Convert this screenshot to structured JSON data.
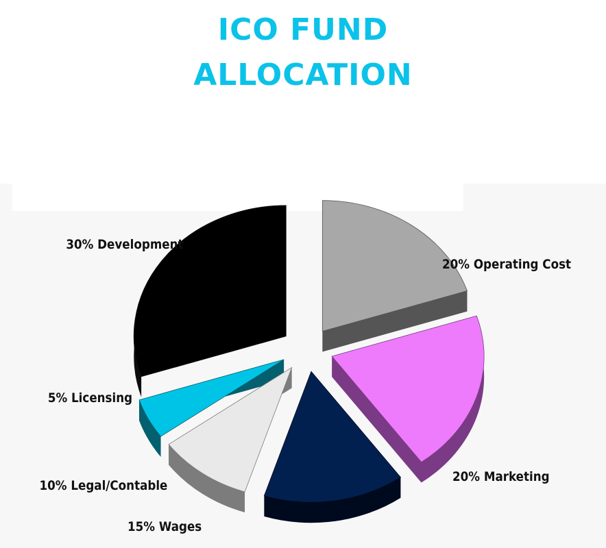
{
  "title": {
    "line1": "ICO FUND",
    "line2": "ALLOCATION",
    "color": "#0bc2e8"
  },
  "chart_data": {
    "type": "pie",
    "title": "ICO FUND ALLOCATION",
    "style": "3d-exploded",
    "label_format": "percent and category",
    "slices": [
      {
        "label": "20% Operating Cost",
        "category": "Operating Cost",
        "value": 20,
        "color": "#a8a8a8",
        "side_color": "#555555"
      },
      {
        "label": "20% Marketing",
        "category": "Marketing",
        "value": 20,
        "color": "#ee7bfc",
        "side_color": "#7a3a85"
      },
      {
        "label": "15% Wages",
        "category": "Wages",
        "value": 15,
        "color": "#02204f",
        "side_color": "#000a1e"
      },
      {
        "label": "10% Legal/Contable",
        "category": "Legal/Contable",
        "value": 10,
        "color": "#e9e9e9",
        "side_color": "#7c7c7c"
      },
      {
        "label": "5% Licensing",
        "category": "Licensing",
        "value": 5,
        "color": "#00c4e6",
        "side_color": "#045f6e"
      },
      {
        "label": "30% Development",
        "category": "Development",
        "value": 30,
        "color": "#000000",
        "side_color": "#0c0c0c"
      }
    ]
  }
}
